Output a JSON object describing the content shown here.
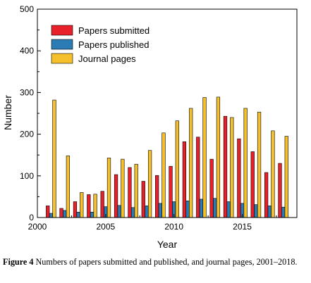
{
  "chart_data": {
    "type": "bar",
    "xlabel": "Year",
    "ylabel": "Number",
    "xlim": [
      2000,
      2019
    ],
    "ylim": [
      0,
      500
    ],
    "xticks": [
      2000,
      2005,
      2010,
      2015
    ],
    "yticks": [
      0,
      100,
      200,
      300,
      400,
      500
    ],
    "legend_position": "top-left",
    "grid": false,
    "x": [
      2001,
      2002,
      2003,
      2004,
      2005,
      2006,
      2007,
      2008,
      2009,
      2010,
      2011,
      2012,
      2013,
      2014,
      2015,
      2016,
      2017,
      2018
    ],
    "series": [
      {
        "name": "Papers submitted",
        "color": "#e8202a",
        "values": [
          28,
          22,
          38,
          55,
          63,
          103,
          120,
          87,
          101,
          123,
          182,
          193,
          140,
          243,
          189,
          158,
          108,
          130
        ]
      },
      {
        "name": "Papers published",
        "color": "#2b7bb5",
        "values": [
          10,
          17,
          13,
          13,
          26,
          29,
          24,
          28,
          34,
          38,
          40,
          44,
          46,
          38,
          34,
          31,
          28,
          25
        ]
      },
      {
        "name": "Journal pages",
        "color": "#f5c02c",
        "values": [
          282,
          148,
          60,
          56,
          143,
          140,
          128,
          161,
          203,
          232,
          262,
          288,
          289,
          240,
          262,
          253,
          208,
          195
        ]
      }
    ]
  },
  "caption": {
    "label": "Figure 4",
    "text": " Numbers of papers submitted and published, and journal pages, 2001–2018."
  }
}
